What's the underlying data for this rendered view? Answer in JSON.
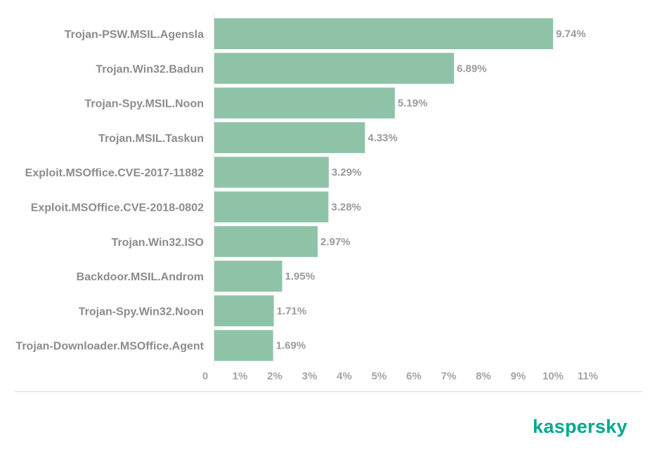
{
  "brand": {
    "logo_text": "kaspersky",
    "color": "#00a88e"
  },
  "chart_data": {
    "type": "bar",
    "orientation": "horizontal",
    "categories": [
      "Trojan-PSW.MSIL.Agensla",
      "Trojan.Win32.Badun",
      "Trojan-Spy.MSIL.Noon",
      "Trojan.MSIL.Taskun",
      "Exploit.MSOffice.CVE-2017-11882",
      "Exploit.MSOffice.CVE-2018-0802",
      "Trojan.Win32.ISO",
      "Backdoor.MSIL.Androm",
      "Trojan-Spy.Win32.Noon",
      "Trojan-Downloader.MSOffice.Agent"
    ],
    "values": [
      9.74,
      6.89,
      5.19,
      4.33,
      3.29,
      3.28,
      2.97,
      1.95,
      1.71,
      1.69
    ],
    "value_labels": [
      "9.74%",
      "6.89%",
      "5.19%",
      "4.33%",
      "3.29%",
      "3.28%",
      "2.97%",
      "1.95%",
      "1.71%",
      "1.69%"
    ],
    "x_ticks": [
      "0",
      "1%",
      "2%",
      "3%",
      "4%",
      "5%",
      "6%",
      "7%",
      "8%",
      "9%",
      "10%",
      "11%"
    ],
    "xlim": [
      0,
      11
    ],
    "xlabel": "",
    "ylabel": "",
    "title": "",
    "grid": false,
    "bar_color": "#8fc3a7"
  }
}
